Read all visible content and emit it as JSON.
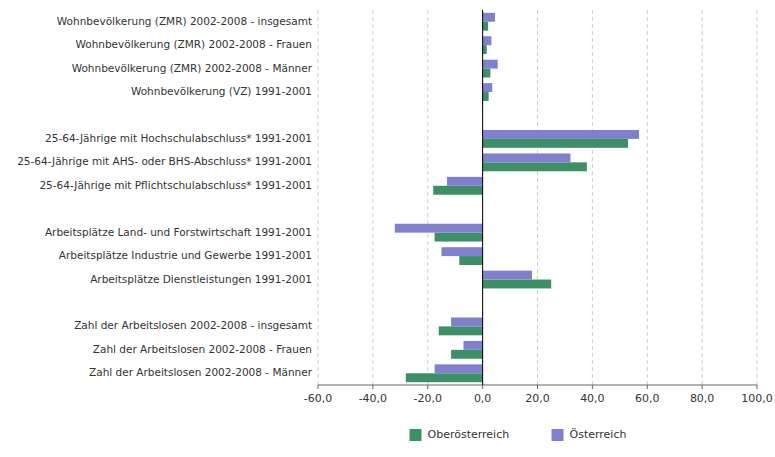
{
  "chart_data": {
    "type": "bar",
    "orientation": "horizontal",
    "categories": [
      "Wohnbevölkerung (ZMR) 2002-2008 - insgesamt",
      "Wohnbevölkerung (ZMR) 2002-2008 - Frauen",
      "Wohnbevölkerung (ZMR) 2002-2008 - Männer",
      "Wohnbevölkerung (VZ) 1991-2001",
      null,
      "25-64-Jährige mit Hochschulabschluss* 1991-2001",
      "25-64-Jährige mit AHS- oder BHS-Abschluss* 1991-2001",
      "25-64-Jährige mit Pflichtschulabschluss* 1991-2001",
      null,
      "Arbeitsplätze Land- und Forstwirtschaft 1991-2001",
      "Arbeitsplätze Industrie und Gewerbe 1991-2001",
      "Arbeitsplätze Dienstleistungen 1991-2001",
      null,
      "Zahl der Arbeitslosen 2002-2008 - insgesamt",
      "Zahl der Arbeitslosen 2002-2008 - Frauen",
      "Zahl der Arbeitslosen 2002-2008 - Männer"
    ],
    "series": [
      {
        "name": "Oberösterreich",
        "color": "#3d8f65",
        "values": [
          2.0,
          1.5,
          2.8,
          2.2,
          null,
          53.0,
          38.0,
          -18.0,
          null,
          -17.5,
          -8.5,
          25.0,
          null,
          -16.0,
          -11.5,
          -28.0
        ]
      },
      {
        "name": "Österreich",
        "color": "#8080cc",
        "values": [
          4.5,
          3.2,
          5.5,
          3.5,
          null,
          57.0,
          32.0,
          -13.0,
          null,
          -32.0,
          -15.0,
          18.0,
          null,
          -11.5,
          -7.0,
          -17.5
        ]
      }
    ],
    "xlim": [
      -60,
      100
    ],
    "xticks": [
      {
        "value": -60,
        "label": "-60,0"
      },
      {
        "value": -40,
        "label": "-40,0"
      },
      {
        "value": -20,
        "label": "-20,0"
      },
      {
        "value": 0,
        "label": "0,0"
      },
      {
        "value": 20,
        "label": "20,0"
      },
      {
        "value": 40,
        "label": "40,0"
      },
      {
        "value": 60,
        "label": "60,0"
      },
      {
        "value": 80,
        "label": "80,0"
      },
      {
        "value": 100,
        "label": "100,0"
      }
    ],
    "grid": true,
    "legend": "bottom"
  }
}
